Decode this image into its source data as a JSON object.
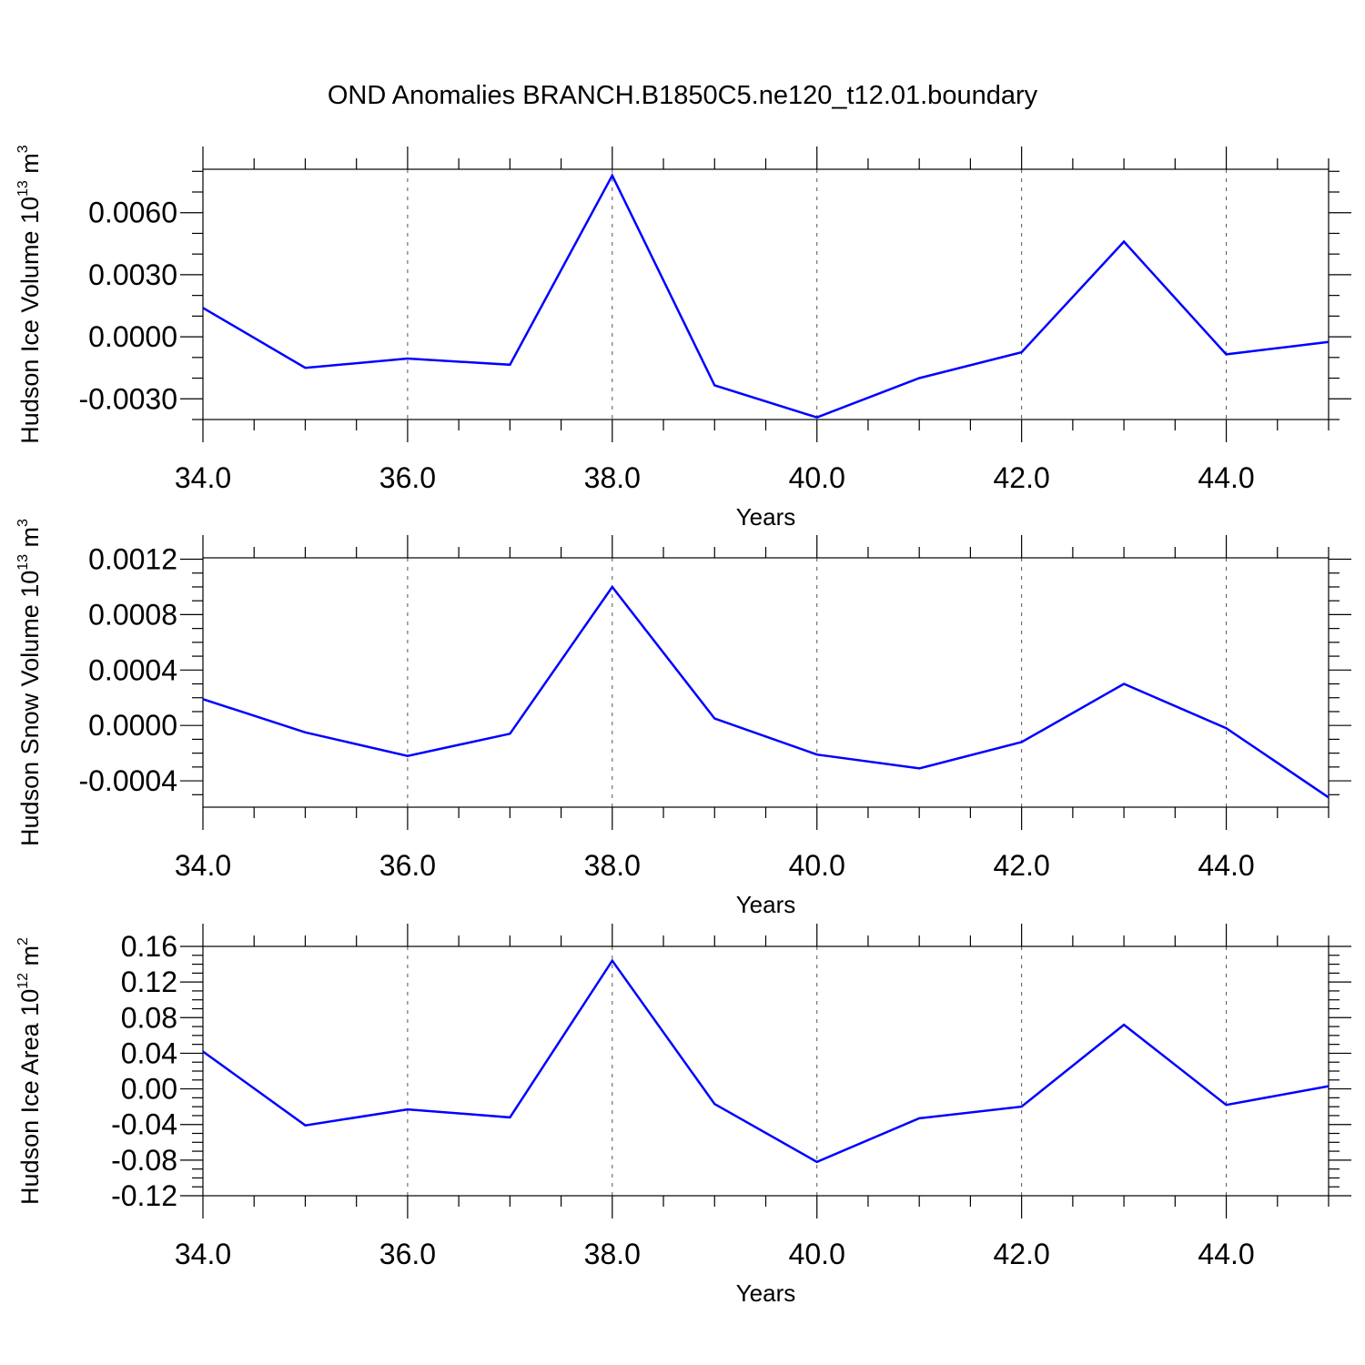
{
  "title": "OND Anomalies BRANCH.B1850C5.ne120_t12.01.boundary",
  "line_color": "#0000ff",
  "chart_data": [
    {
      "type": "line",
      "xlabel": "Years",
      "ylabel": {
        "text": "Hudson Ice Volume 10",
        "sup": "13",
        "unit": " m",
        "unit_sup": "3"
      },
      "x": [
        34,
        35,
        36,
        37,
        38,
        39,
        40,
        41,
        42,
        43,
        44,
        45
      ],
      "series": [
        {
          "values": [
            0.0014,
            -0.0015,
            -0.00105,
            -0.00135,
            0.0078,
            -0.00235,
            -0.0039,
            -0.002,
            -0.00075,
            0.0046,
            -0.00085,
            -0.00025
          ]
        }
      ],
      "xlim": [
        34,
        45
      ],
      "ylim": [
        -0.004,
        0.0081
      ],
      "x_ticks": [
        34,
        36,
        38,
        40,
        42,
        44
      ],
      "x_tick_labels": [
        "34.0",
        "36.0",
        "38.0",
        "40.0",
        "42.0",
        "44.0"
      ],
      "y_ticks": [
        -0.003,
        0,
        0.003,
        0.006
      ],
      "y_tick_labels": [
        "-0.0030",
        "0.0000",
        "0.0030",
        "0.0060"
      ],
      "y_minor_step": 0.001,
      "grid": "vertical dashed"
    },
    {
      "type": "line",
      "xlabel": "Years",
      "ylabel": {
        "text": "Hudson Snow Volume 10",
        "sup": "13",
        "unit": " m",
        "unit_sup": "3"
      },
      "x": [
        34,
        35,
        36,
        37,
        38,
        39,
        40,
        41,
        42,
        43,
        44,
        45
      ],
      "series": [
        {
          "values": [
            0.00019,
            -5e-05,
            -0.00022,
            -6e-05,
            0.001,
            5e-05,
            -0.00021,
            -0.00031,
            -0.00012,
            0.0003,
            -2e-05,
            -0.00052
          ]
        }
      ],
      "xlim": [
        34,
        45
      ],
      "ylim": [
        -0.00059,
        0.00121
      ],
      "x_ticks": [
        34,
        36,
        38,
        40,
        42,
        44
      ],
      "x_tick_labels": [
        "34.0",
        "36.0",
        "38.0",
        "40.0",
        "42.0",
        "44.0"
      ],
      "y_ticks": [
        -0.0004,
        0,
        0.0004,
        0.0008,
        0.0012
      ],
      "y_tick_labels": [
        "-0.0004",
        "0.0000",
        "0.0004",
        "0.0008",
        "0.0012"
      ],
      "y_minor_step": 0.0001,
      "grid": "vertical dashed"
    },
    {
      "type": "line",
      "xlabel": "Years",
      "ylabel": {
        "text": "Hudson Ice Area 10",
        "sup": "12",
        "unit": " m",
        "unit_sup": "2"
      },
      "x": [
        34,
        35,
        36,
        37,
        38,
        39,
        40,
        41,
        42,
        43,
        44,
        45
      ],
      "series": [
        {
          "values": [
            0.042,
            -0.041,
            -0.023,
            -0.032,
            0.144,
            -0.017,
            -0.082,
            -0.033,
            -0.02,
            0.072,
            -0.018,
            0.003
          ]
        }
      ],
      "xlim": [
        34,
        45
      ],
      "ylim": [
        -0.12,
        0.16
      ],
      "x_ticks": [
        34,
        36,
        38,
        40,
        42,
        44
      ],
      "x_tick_labels": [
        "34.0",
        "36.0",
        "38.0",
        "40.0",
        "42.0",
        "44.0"
      ],
      "y_ticks": [
        -0.12,
        -0.08,
        -0.04,
        0,
        0.04,
        0.08,
        0.12,
        0.16
      ],
      "y_tick_labels": [
        "-0.12",
        "-0.08",
        "-0.04",
        "0.00",
        "0.04",
        "0.08",
        "0.12",
        "0.16"
      ],
      "y_minor_step": 0.01,
      "grid": "vertical dashed"
    }
  ]
}
